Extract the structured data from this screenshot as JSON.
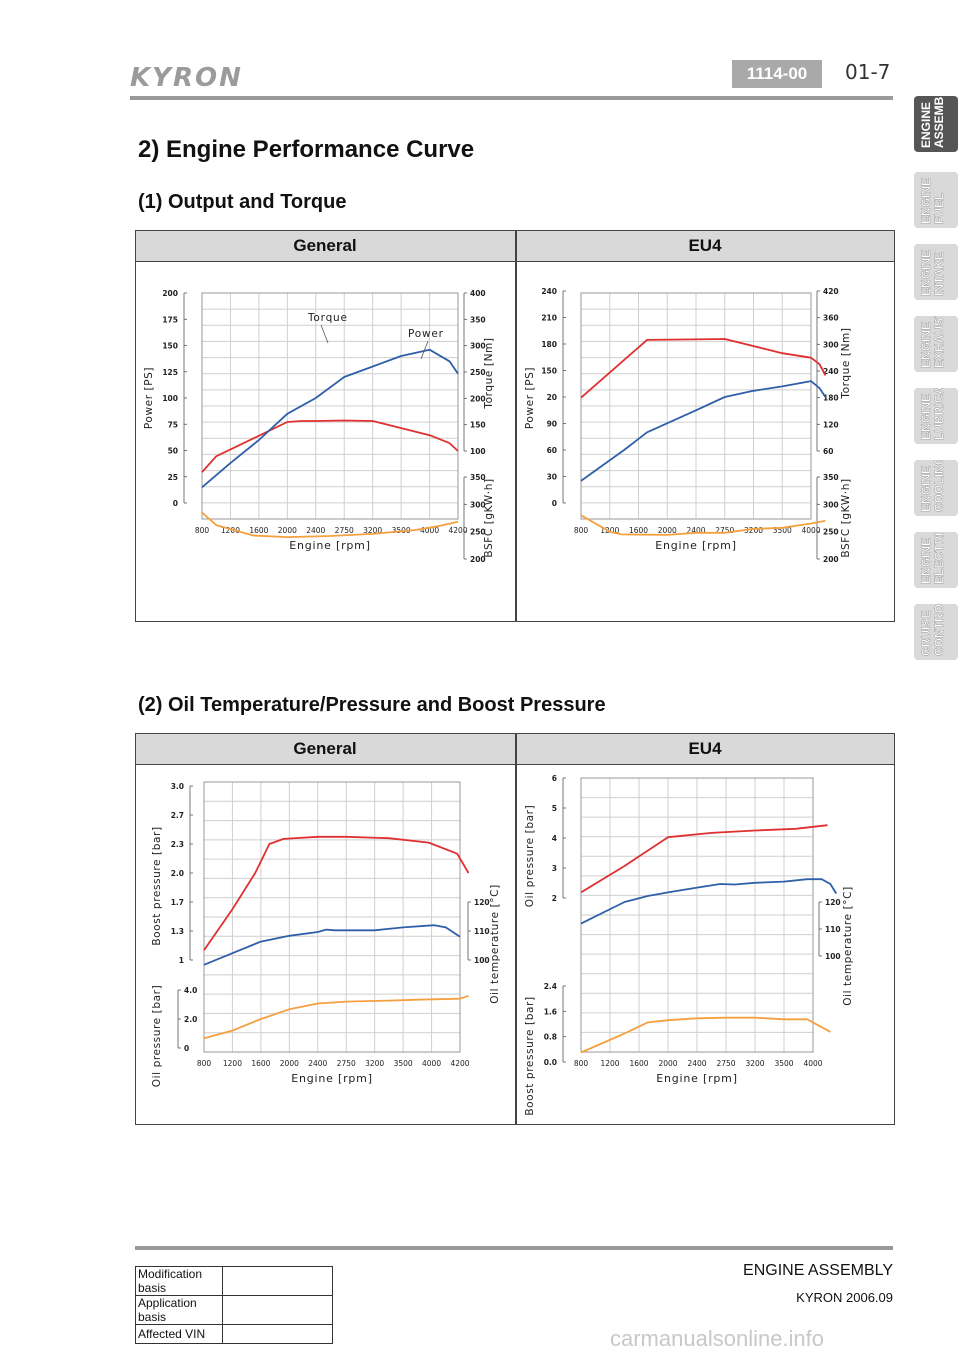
{
  "header": {
    "brand": "KYRON",
    "section_code": "1114-00",
    "page_number": "01-7"
  },
  "tabs": [
    {
      "label": "ENGINE\nASSEMBL",
      "active": true
    },
    {
      "label": "ENGINE\nFUEL",
      "active": false
    },
    {
      "label": "ENGINE\nINTAKE",
      "active": false
    },
    {
      "label": "ENGINE\nEXHAUST",
      "active": false
    },
    {
      "label": "ENGINE\nLUBRICA",
      "active": false
    },
    {
      "label": "ENGINE\nCOOLING",
      "active": false
    },
    {
      "label": "ENGINE\nELECTRI",
      "active": false
    },
    {
      "label": "CRUISE\nCONTRO",
      "active": false
    }
  ],
  "main": {
    "title": "2) Engine Performance Curve",
    "section1": {
      "heading": "(1) Output and Torque",
      "col_left": "General",
      "col_right": "EU4"
    },
    "section2": {
      "heading": "(2) Oil Temperature/Pressure and Boost Pressure",
      "col_left": "General",
      "col_right": "EU4"
    }
  },
  "chart_data": [
    {
      "id": "output_torque_general",
      "type": "line",
      "xlabel": "Engine [rpm]",
      "x_ticks": [
        "800",
        "1200",
        "1600",
        "2000",
        "2400",
        "2750",
        "3200",
        "3500",
        "4000",
        "4200"
      ],
      "y_axes": [
        {
          "label": "Power [PS]",
          "ticks": [
            "0",
            "25",
            "50",
            "75",
            "100",
            "125",
            "150",
            "175",
            "200"
          ]
        },
        {
          "label": "Torque [Nm]",
          "ticks": [
            "100",
            "150",
            "200",
            "250",
            "300",
            "350",
            "400"
          ]
        },
        {
          "label": "BSFC [gKW·h]",
          "ticks": [
            "200",
            "250",
            "300",
            "350"
          ]
        }
      ],
      "annotations": [
        "Torque",
        "Power"
      ],
      "series": [
        {
          "name": "Torque",
          "color": "#e03030",
          "axis": 1,
          "points": [
            [
              0,
              60
            ],
            [
              0.5,
              90
            ],
            [
              3,
              155
            ],
            [
              3.5,
              157
            ],
            [
              4,
              157
            ],
            [
              5,
              158
            ],
            [
              6,
              157
            ],
            [
              8,
              130
            ],
            [
              8.7,
              115
            ],
            [
              9,
              100
            ]
          ]
        },
        {
          "name": "Power",
          "color": "#2f5fa8",
          "axis": 0,
          "points": [
            [
              0,
              15
            ],
            [
              1,
              38
            ],
            [
              2,
              60
            ],
            [
              3,
              85
            ],
            [
              4,
              100
            ],
            [
              5,
              120
            ],
            [
              6,
              130
            ],
            [
              7,
              140
            ],
            [
              8,
              146
            ],
            [
              8.7,
              135
            ],
            [
              9,
              123
            ]
          ]
        },
        {
          "axis": 2,
          "color": "#f5a040",
          "points": [
            [
              0,
              285
            ],
            [
              0.5,
              262
            ],
            [
              1.8,
              243
            ],
            [
              3,
              240
            ],
            [
              4.5,
              242
            ],
            [
              6,
              246
            ],
            [
              7.5,
              253
            ],
            [
              8.3,
              260
            ],
            [
              9,
              268
            ]
          ]
        }
      ]
    },
    {
      "id": "output_torque_eu4",
      "type": "line",
      "xlabel": "Engine [rpm]",
      "x_ticks": [
        "800",
        "1200",
        "1600",
        "2000",
        "2400",
        "2750",
        "3200",
        "3500",
        "4000"
      ],
      "y_axes": [
        {
          "label": "Power [PS]",
          "ticks": [
            "0",
            "30",
            "60",
            "90",
            "20",
            "150",
            "180",
            "210",
            "240"
          ]
        },
        {
          "label": "Torque [Nm]",
          "ticks": [
            "60",
            "120",
            "180",
            "240",
            "300",
            "360",
            "420"
          ]
        },
        {
          "label": "BSFC [gKW·h]",
          "ticks": [
            "200",
            "250",
            "300",
            "350"
          ]
        }
      ],
      "series": [
        {
          "color": "#e03030",
          "axis": 1,
          "points": [
            [
              0,
              180
            ],
            [
              2.3,
              310
            ],
            [
              5,
              312
            ],
            [
              7,
              280
            ],
            [
              8,
              270
            ],
            [
              8.3,
              255
            ],
            [
              8.5,
              230
            ]
          ]
        },
        {
          "color": "#2f5fa8",
          "axis": 0,
          "points": [
            [
              0,
              25
            ],
            [
              1.5,
              60
            ],
            [
              2.3,
              80
            ],
            [
              4,
              105
            ],
            [
              5,
              120
            ],
            [
              6,
              127
            ],
            [
              7,
              132
            ],
            [
              8,
              138
            ],
            [
              8.3,
              130
            ],
            [
              8.5,
              120
            ]
          ]
        },
        {
          "axis": 2,
          "color": "#f5a040",
          "points": [
            [
              0,
              280
            ],
            [
              1,
              250
            ],
            [
              1.4,
              245
            ],
            [
              3,
              244
            ],
            [
              4,
              248
            ],
            [
              5,
              248
            ],
            [
              6,
              255
            ],
            [
              7,
              257
            ],
            [
              8,
              265
            ],
            [
              8.5,
              270
            ]
          ]
        }
      ]
    },
    {
      "id": "oil_boost_general",
      "type": "line",
      "xlabel": "Engine [rpm]",
      "x_ticks": [
        "800",
        "1200",
        "1600",
        "2000",
        "2400",
        "2750",
        "3200",
        "3500",
        "4000",
        "4200"
      ],
      "y_axes": [
        {
          "label": "Boost pressure [bar]",
          "ticks": [
            "1",
            "1.3",
            "1.7",
            "2.0",
            "2.3",
            "2.7",
            "3.0"
          ]
        },
        {
          "label": "Oil temperature [°C]",
          "ticks": [
            "100",
            "110",
            "120"
          ]
        },
        {
          "label": "Oil pressure [bar]",
          "ticks": [
            "0",
            "2.0",
            "4.0"
          ]
        }
      ],
      "series": [
        {
          "color": "#e03030",
          "axis": 0,
          "points": [
            [
              0,
              1.1
            ],
            [
              1,
              1.6
            ],
            [
              1.8,
              2.0
            ],
            [
              2.3,
              2.3
            ],
            [
              2.8,
              2.37
            ],
            [
              4,
              2.4
            ],
            [
              5,
              2.4
            ],
            [
              6.5,
              2.38
            ],
            [
              7.9,
              2.32
            ],
            [
              8.9,
              2.2
            ],
            [
              9.3,
              2.0
            ]
          ]
        },
        {
          "color": "#2f5fa8",
          "axis": 0,
          "points": [
            [
              0,
              0.95
            ],
            [
              1,
              1.07
            ],
            [
              2,
              1.19
            ],
            [
              3,
              1.25
            ],
            [
              4,
              1.29
            ],
            [
              4.3,
              1.32
            ],
            [
              4.6,
              1.31
            ],
            [
              6,
              1.31
            ],
            [
              7,
              1.35
            ],
            [
              8.1,
              1.38
            ],
            [
              8.5,
              1.35
            ],
            [
              9,
              1.24
            ]
          ]
        },
        {
          "color": "#f5a040",
          "axis": 2,
          "points": [
            [
              0,
              1.0
            ],
            [
              1,
              1.8
            ],
            [
              2,
              3.0
            ],
            [
              3,
              4.0
            ],
            [
              4,
              4.6
            ],
            [
              5,
              4.8
            ],
            [
              6.5,
              4.9
            ],
            [
              7.5,
              5.0
            ],
            [
              9,
              5.1
            ],
            [
              9.3,
              5.4
            ]
          ]
        }
      ]
    },
    {
      "id": "oil_boost_eu4",
      "type": "line",
      "xlabel": "Engine [rpm]",
      "x_ticks": [
        "800",
        "1200",
        "1600",
        "2000",
        "2400",
        "2750",
        "3200",
        "3500",
        "4000"
      ],
      "y_axes": [
        {
          "label": "Oil pressure [bar]",
          "ticks": [
            "2",
            "3",
            "4",
            "5",
            "6"
          ]
        },
        {
          "label": "Oil temperature [°C]",
          "ticks": [
            "100",
            "110",
            "120"
          ]
        },
        {
          "label": "Boost pressure [bar]",
          "ticks": [
            "0.0",
            "0.8",
            "1.6",
            "2.4"
          ]
        }
      ],
      "series": [
        {
          "color": "#e03030",
          "axis": 0,
          "points": [
            [
              0,
              1.9
            ],
            [
              1.5,
              3.0
            ],
            [
              3,
              4.2
            ],
            [
              4.5,
              4.38
            ],
            [
              6,
              4.48
            ],
            [
              7.4,
              4.55
            ],
            [
              8.5,
              4.7
            ]
          ]
        },
        {
          "color": "#2f5fa8",
          "axis": 0,
          "points": [
            [
              0,
              0.6
            ],
            [
              1.5,
              1.5
            ],
            [
              2.3,
              1.75
            ],
            [
              3,
              1.9
            ],
            [
              4,
              2.1
            ],
            [
              4.8,
              2.25
            ],
            [
              5.3,
              2.23
            ],
            [
              6,
              2.3
            ],
            [
              7,
              2.35
            ],
            [
              7.8,
              2.45
            ],
            [
              8.3,
              2.45
            ],
            [
              8.6,
              2.25
            ],
            [
              8.8,
              1.85
            ]
          ]
        },
        {
          "color": "#f5a040",
          "axis": 2,
          "points": [
            [
              0,
              0.3
            ],
            [
              1.5,
              0.9
            ],
            [
              2.3,
              1.25
            ],
            [
              3,
              1.32
            ],
            [
              4,
              1.38
            ],
            [
              5,
              1.4
            ],
            [
              6,
              1.4
            ],
            [
              7,
              1.35
            ],
            [
              7.8,
              1.35
            ],
            [
              8.6,
              0.95
            ]
          ]
        }
      ]
    }
  ],
  "footer": {
    "title": "ENGINE ASSEMBLY",
    "subtitle": "KYRON 2006.09",
    "rows": [
      {
        "label": "Modification basis",
        "value": ""
      },
      {
        "label": "Application basis",
        "value": ""
      },
      {
        "label": "Affected VIN",
        "value": ""
      }
    ],
    "watermark": "carmanualsonline.info"
  }
}
